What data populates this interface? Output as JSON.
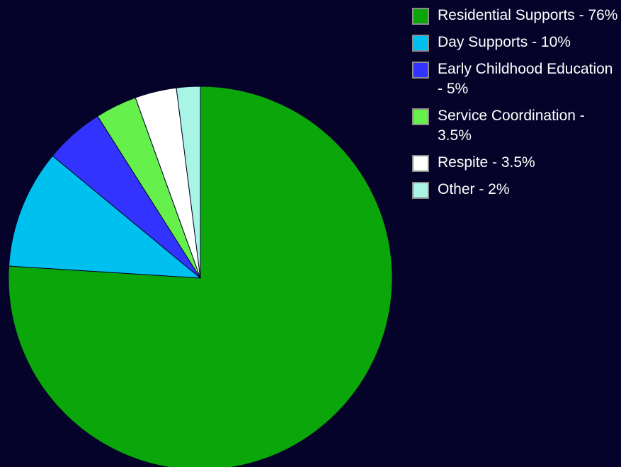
{
  "chart_data": {
    "type": "pie",
    "title": "",
    "slices": [
      {
        "label": "Residential Supports - 76%",
        "value": 76,
        "color": "#0aa60a"
      },
      {
        "label": "Day Supports - 10%",
        "value": 10,
        "color": "#00c0f0"
      },
      {
        "label": "Early Childhood Education - 5%",
        "value": 5,
        "color": "#3333ff"
      },
      {
        "label": "Service Coordination - 3.5%",
        "value": 3.5,
        "color": "#66f04c"
      },
      {
        "label": "Respite - 3.5%",
        "value": 3.5,
        "color": "#ffffff"
      },
      {
        "label": "Other - 2%",
        "value": 2,
        "color": "#a8f5e6"
      }
    ],
    "legend_position": "top-right",
    "background_color": "#06032a"
  }
}
